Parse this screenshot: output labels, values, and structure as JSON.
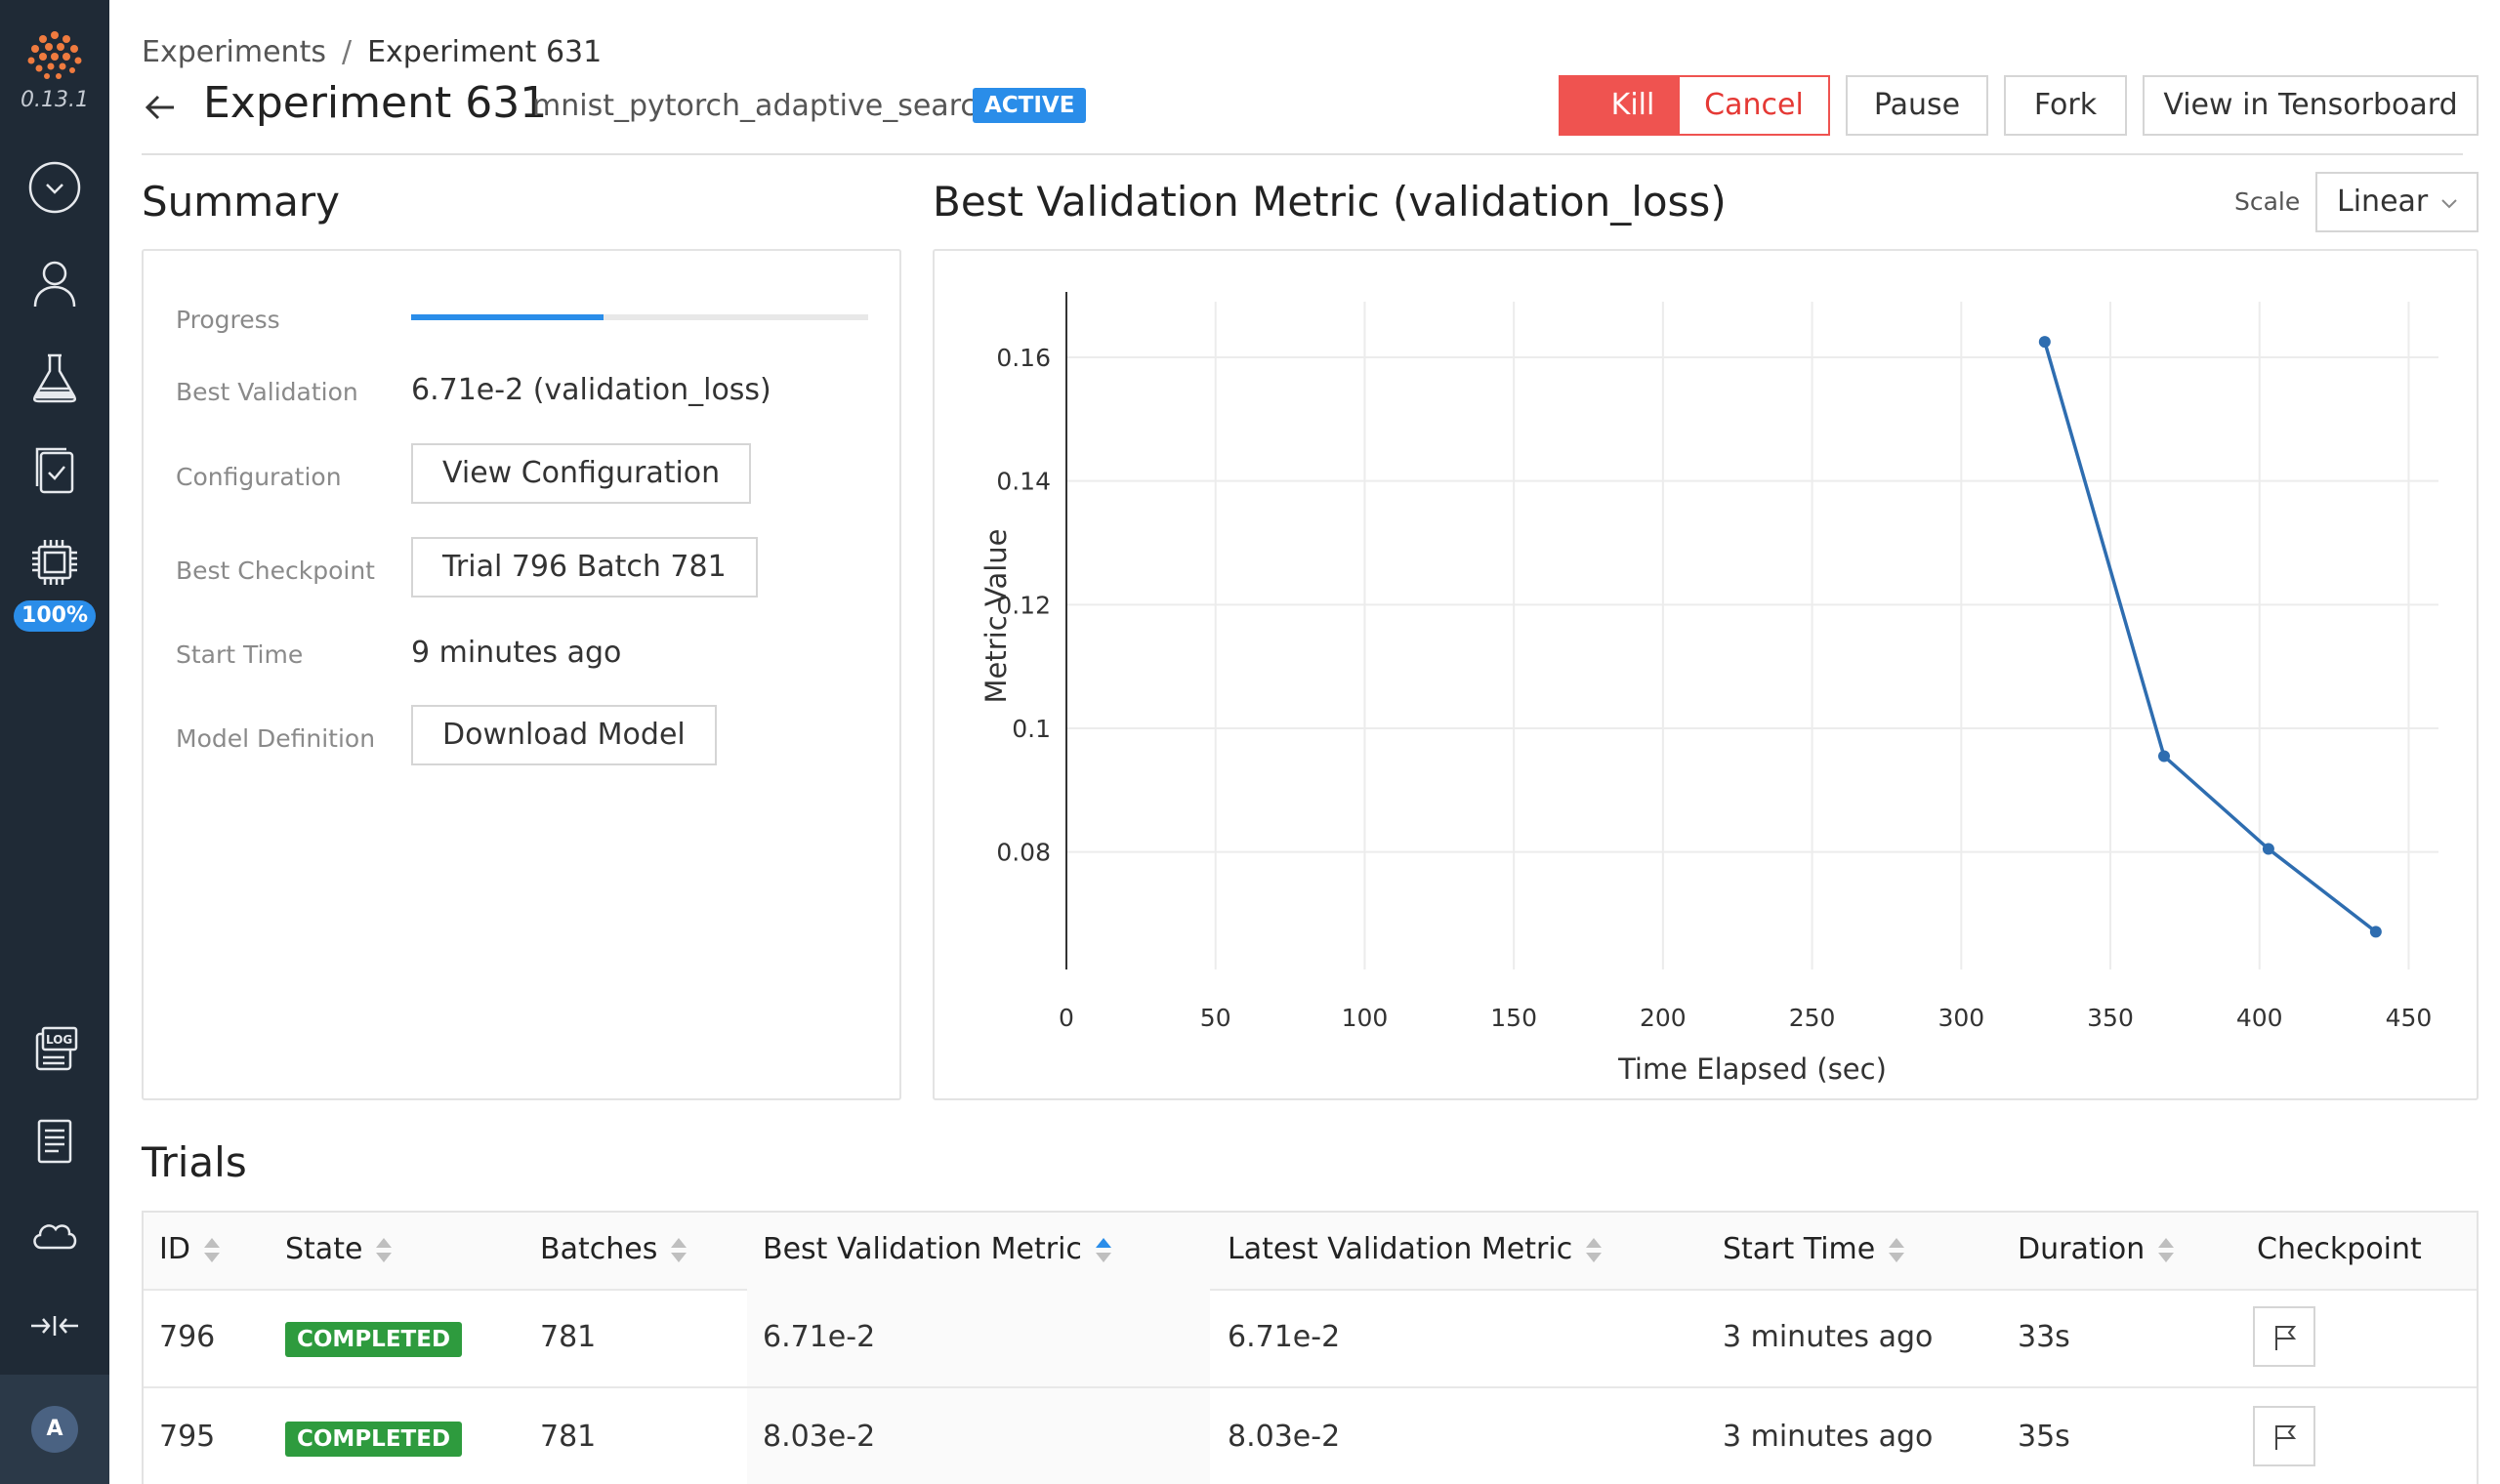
{
  "sidebar": {
    "version": "0.13.1",
    "slot_usage": "100%",
    "avatar_initial": "A",
    "icons": [
      "determined-logo",
      "chevron-down-circle-icon",
      "user-icon",
      "flask-icon",
      "tasks-icon",
      "cpu-icon",
      "log-icon",
      "document-icon",
      "cloud-icon",
      "collapse-icon"
    ]
  },
  "breadcrumb": {
    "root": "Experiments",
    "separator": "/",
    "current": "Experiment 631"
  },
  "header": {
    "title": "Experiment 631",
    "name": "mnist_pytorch_adaptive_search",
    "state_badge": "ACTIVE",
    "buttons": {
      "kill": "Kill",
      "cancel": "Cancel",
      "pause": "Pause",
      "fork": "Fork",
      "tensorboard": "View in Tensorboard"
    }
  },
  "summary": {
    "title": "Summary",
    "progress_label": "Progress",
    "progress_fraction": 0.42,
    "best_validation_label": "Best Validation",
    "best_validation_value": "6.71e-2 (validation_loss)",
    "configuration_label": "Configuration",
    "configuration_button": "View Configuration",
    "best_checkpoint_label": "Best Checkpoint",
    "best_checkpoint_button": "Trial 796 Batch 781",
    "start_time_label": "Start Time",
    "start_time_value": "9 minutes ago",
    "model_definition_label": "Model Definition",
    "model_definition_button": "Download Model"
  },
  "chart_section": {
    "title": "Best Validation Metric (validation_loss)",
    "scale_label": "Scale",
    "scale_value": "Linear"
  },
  "chart_data": {
    "type": "line",
    "xlabel": "Time Elapsed (sec)",
    "ylabel": "Metric Value",
    "xlim": [
      0,
      460
    ],
    "ylim": [
      0.061,
      0.169
    ],
    "x_ticks": [
      0,
      50,
      100,
      150,
      200,
      250,
      300,
      350,
      400,
      450
    ],
    "y_ticks": [
      0.08,
      0.1,
      0.12,
      0.14,
      0.16
    ],
    "y_tick_labels": [
      "0.08",
      "0.1",
      "0.12",
      "0.14",
      "0.16"
    ],
    "grid": true,
    "color": "#2e6db0",
    "x": [
      328,
      368,
      403,
      439
    ],
    "y": [
      0.1625,
      0.0955,
      0.0805,
      0.0671
    ]
  },
  "trials": {
    "title": "Trials",
    "columns": [
      "ID",
      "State",
      "Batches",
      "Best Validation Metric",
      "Latest Validation Metric",
      "Start Time",
      "Duration",
      "Checkpoint"
    ],
    "rows": [
      {
        "id": "796",
        "state": "COMPLETED",
        "batches": "781",
        "best": "6.71e-2",
        "latest": "6.71e-2",
        "start": "3 minutes ago",
        "duration": "33s"
      },
      {
        "id": "795",
        "state": "COMPLETED",
        "batches": "781",
        "best": "8.03e-2",
        "latest": "8.03e-2",
        "start": "3 minutes ago",
        "duration": "35s"
      }
    ]
  },
  "colors": {
    "accent": "#2a8de9",
    "danger": "#ef5350",
    "success": "#2e9b3e",
    "sidebar": "#1f2a36"
  }
}
